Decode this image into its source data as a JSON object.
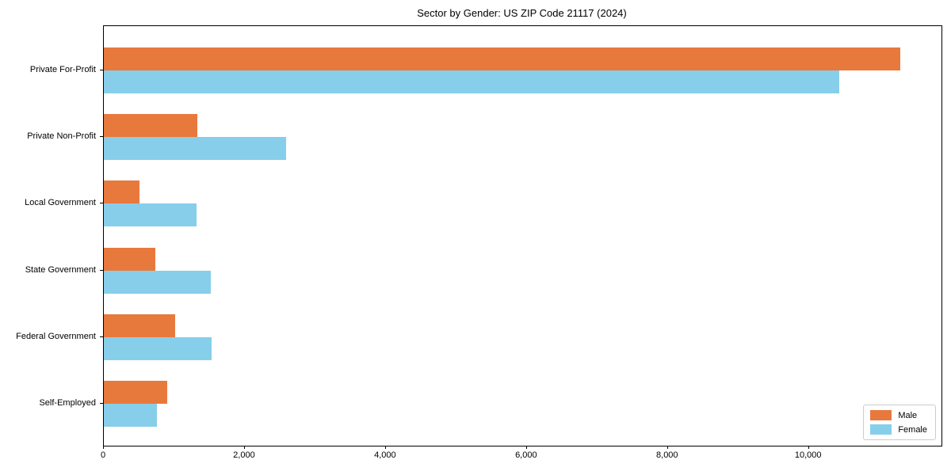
{
  "chart_data": {
    "type": "bar",
    "orientation": "horizontal",
    "title": "Sector by Gender: US ZIP Code 21117 (2024)",
    "categories": [
      "Private For-Profit",
      "Private Non-Profit",
      "Local Government",
      "State Government",
      "Federal Government",
      "Self-Employed"
    ],
    "series": [
      {
        "name": "Male",
        "color": "#e8793d",
        "values": [
          11300,
          1330,
          505,
          735,
          1010,
          900
        ]
      },
      {
        "name": "Female",
        "color": "#87ceeb",
        "values": [
          10430,
          2580,
          1320,
          1520,
          1530,
          750
        ]
      }
    ],
    "xlabel": "",
    "ylabel": "",
    "xlim": [
      0,
      11880
    ],
    "xticks": [
      0,
      2000,
      4000,
      6000,
      8000,
      10000
    ],
    "xtick_labels": [
      "0",
      "2,000",
      "4,000",
      "6,000",
      "8,000",
      "10,000"
    ],
    "grid": false,
    "legend_position": "lower right",
    "background_color": "#ffffff",
    "spine_color": "#000000"
  }
}
